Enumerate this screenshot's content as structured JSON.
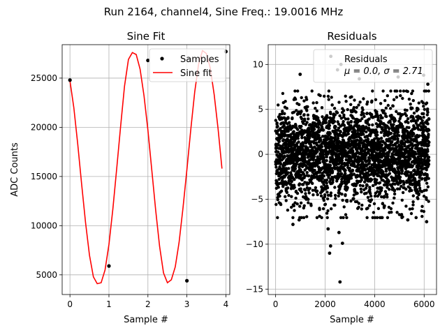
{
  "suptitle": "Run 2164, channel4, Sine Freq.: 19.0016 MHz",
  "colors": {
    "fit": "#ff0000",
    "samples": "#000000",
    "grid": "#b0b0b0",
    "residuals": "#000000"
  },
  "chart_data": [
    {
      "type": "line",
      "title": "Sine Fit",
      "xlabel": "Sample #",
      "ylabel": "ADC Counts",
      "xlim": [
        -0.2,
        4.1
      ],
      "ylim": [
        3000,
        28400
      ],
      "xticks": [
        0,
        1,
        2,
        3,
        4
      ],
      "yticks": [
        5000,
        10000,
        15000,
        20000,
        25000
      ],
      "grid": true,
      "legend_position": "top-right",
      "series": [
        {
          "name": "Samples",
          "style": "markers",
          "x": [
            0,
            1,
            2,
            3,
            4
          ],
          "y": [
            24800,
            5900,
            26800,
            4400,
            27700
          ]
        },
        {
          "name": "Sine fit",
          "style": "line",
          "x": [
            0,
            0.1,
            0.2,
            0.3,
            0.4,
            0.5,
            0.6,
            0.7,
            0.8,
            0.9,
            1.0,
            1.1,
            1.2,
            1.3,
            1.4,
            1.5,
            1.6,
            1.7,
            1.8,
            1.9,
            2.0,
            2.1,
            2.2,
            2.3,
            2.4,
            2.5,
            2.6,
            2.7,
            2.8,
            2.9,
            3.0,
            3.1,
            3.2,
            3.3,
            3.4,
            3.5,
            3.6,
            3.7,
            3.8,
            3.9
          ],
          "y": [
            24700,
            22000,
            18300,
            14200,
            10300,
            7000,
            4800,
            4100,
            4200,
            5500,
            8100,
            11700,
            15800,
            20100,
            24200,
            26900,
            27600,
            27400,
            25900,
            23200,
            19700,
            15600,
            11500,
            7900,
            5200,
            4200,
            4500,
            5800,
            8300,
            11800,
            15700,
            19800,
            23600,
            26400,
            27800,
            27500,
            26000,
            23300,
            19800,
            15800
          ]
        }
      ]
    },
    {
      "type": "scatter",
      "title": "Residuals",
      "xlabel": "Sample #",
      "ylabel": "",
      "xlim": [
        -300,
        6500
      ],
      "ylim": [
        -15.6,
        12.2
      ],
      "xticks": [
        0,
        2000,
        4000,
        6000
      ],
      "yticks": [
        -15,
        -10,
        -5,
        0,
        5,
        10
      ],
      "grid": true,
      "legend_position": "top-right",
      "legend": {
        "label": "Residuals",
        "stats": "μ = 0.0, σ = 2.71"
      },
      "n_points": 6200,
      "mean": 0.0,
      "std": 2.71,
      "extreme_points": [
        {
          "x": 2600,
          "y": -14.2
        },
        {
          "x": 2180,
          "y": -11.0
        },
        {
          "x": 2220,
          "y": -10.2
        },
        {
          "x": 2230,
          "y": 10.9
        },
        {
          "x": 990,
          "y": 8.9
        },
        {
          "x": 2640,
          "y": 10.0
        },
        {
          "x": 3380,
          "y": 8.4
        },
        {
          "x": 4950,
          "y": 8.6
        },
        {
          "x": 5980,
          "y": 8.8
        },
        {
          "x": 6150,
          "y": 7.8
        },
        {
          "x": 2500,
          "y": 9.4
        },
        {
          "x": 2700,
          "y": -9.9
        },
        {
          "x": 2120,
          "y": -8.3
        },
        {
          "x": 2560,
          "y": -8.7
        },
        {
          "x": 700,
          "y": -7.8
        },
        {
          "x": 950,
          "y": -7.3
        },
        {
          "x": 5340,
          "y": -7.3
        },
        {
          "x": 6100,
          "y": -7.5
        }
      ]
    }
  ]
}
